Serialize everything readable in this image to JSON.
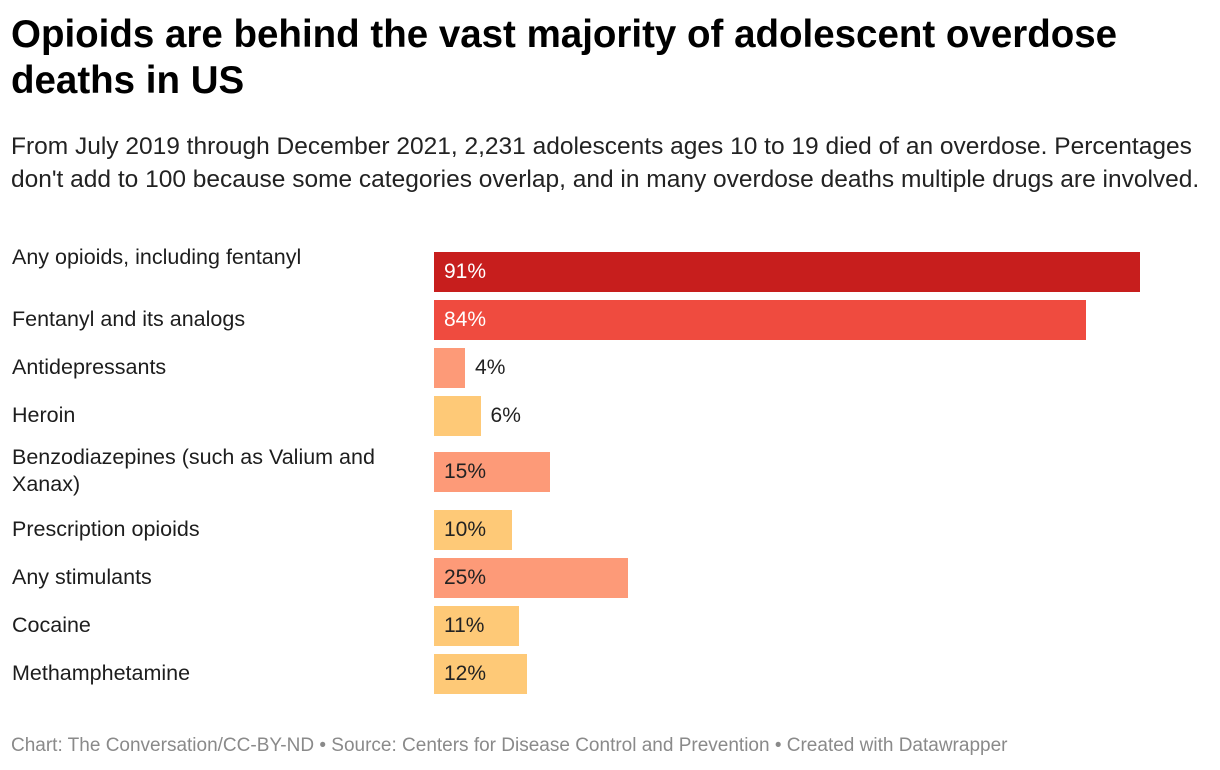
{
  "title": "Opioids are behind the vast majority of adolescent overdose deaths in US",
  "subtitle": "From July 2019 through December 2021, 2,231 adolescents ages 10 to 19 died of an overdose. Percentages don't add to 100 because some categories overlap, and in many overdose deaths multiple drugs are involved.",
  "footer": "Chart: The Conversation/CC-BY-ND • Source: Centers for Disease Control and Prevention • Created with Datawrapper",
  "chart_data": {
    "type": "bar",
    "orientation": "horizontal",
    "categories": [
      "Any opioids, including fentanyl",
      "Fentanyl and its analogs",
      "Antidepressants",
      "Heroin",
      "Benzodiazepines (such as Valium and Xanax)",
      "Prescription opioids",
      "Any stimulants",
      "Cocaine",
      "Methamphetamine"
    ],
    "values": [
      91,
      84,
      4,
      6,
      15,
      10,
      25,
      11,
      12
    ],
    "value_labels": [
      "91%",
      "84%",
      "4%",
      "6%",
      "15%",
      "10%",
      "25%",
      "11%",
      "12%"
    ],
    "colors": [
      "#c71e1d",
      "#ef4b3f",
      "#fd9a78",
      "#fec977",
      "#fd9a78",
      "#fec977",
      "#fd9a78",
      "#fec977",
      "#fec977"
    ],
    "xlim": [
      0,
      91
    ],
    "unit": "%"
  }
}
